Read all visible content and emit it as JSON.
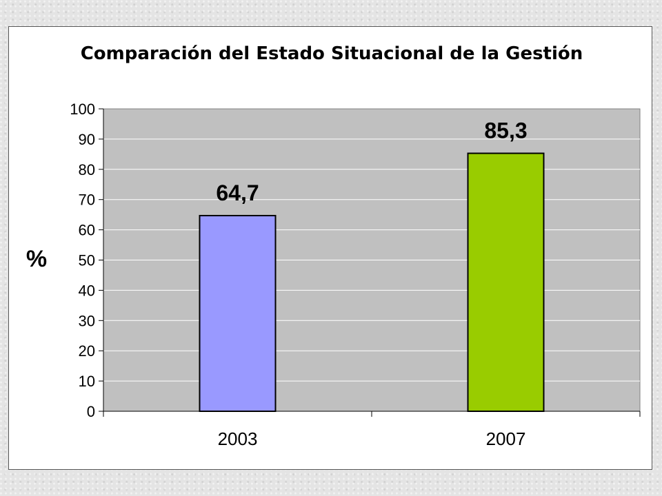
{
  "chart_data": {
    "type": "bar",
    "title": "Comparación del Estado Situacional de la Gestión",
    "xlabel": "",
    "ylabel": "%",
    "categories": [
      "2003",
      "2007"
    ],
    "values": [
      64.7,
      85.3
    ],
    "value_labels": [
      "64,7",
      "85,3"
    ],
    "bar_colors": [
      "#9999ff",
      "#99cc00"
    ],
    "ylim": [
      0,
      100
    ],
    "yticks": [
      0,
      10,
      20,
      30,
      40,
      50,
      60,
      70,
      80,
      90,
      100
    ],
    "grid": true,
    "legend": "none",
    "plot_background": "#c0c0c0"
  }
}
